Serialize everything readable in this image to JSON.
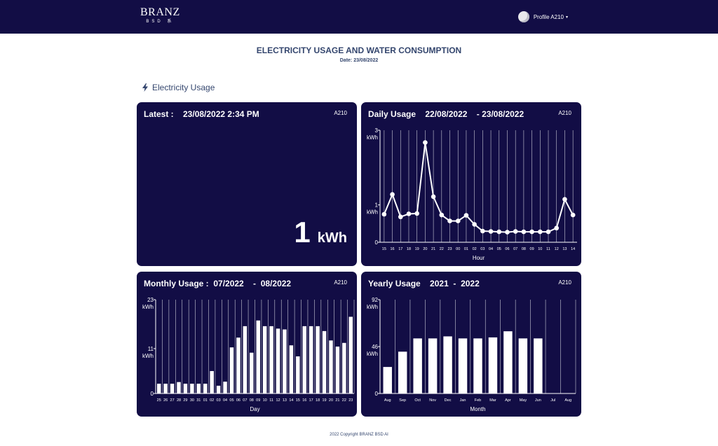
{
  "header": {
    "logo_main": "BRANZ",
    "logo_sub": "BSD 系",
    "profile_label": "Profile A210",
    "caret": "▾"
  },
  "page": {
    "title": "ELECTRICITY USAGE AND WATER CONSUMPTION",
    "date": "Date: 23/08/2022"
  },
  "section": {
    "label": "Electricity Usage",
    "icon": "bolt-icon"
  },
  "cards": {
    "latest": {
      "title": "Latest :    23/08/2022 2:34 PM",
      "id": "A210",
      "value": "1",
      "unit": "kWh"
    },
    "daily": {
      "title": "Daily Usage    22/08/2022    - 23/08/2022",
      "id": "A210"
    },
    "monthly": {
      "title": "Monthly Usage :  07/2022    -  08/2022",
      "id": "A210"
    },
    "yearly": {
      "title": "Yearly Usage    2021  -  2022",
      "id": "A210"
    }
  },
  "footer": {
    "text": "2022 Copyright BRANZ BSD AI"
  },
  "colors": {
    "brand": "#120d45",
    "heading": "#34466e"
  },
  "chart_data": [
    {
      "id": "daily",
      "type": "line",
      "xlabel": "Hour",
      "ylabel": "kWh",
      "ylim": [
        0,
        3
      ],
      "yticks": [
        3,
        1,
        0
      ],
      "ytick_units": [
        "kWh",
        "kWh",
        ""
      ],
      "categories": [
        "15",
        "16",
        "17",
        "18",
        "19",
        "20",
        "21",
        "22",
        "23",
        "00",
        "01",
        "02",
        "03",
        "04",
        "05",
        "06",
        "07",
        "08",
        "09",
        "10",
        "11",
        "12",
        "13",
        "14"
      ],
      "values": [
        0.75,
        1.28,
        0.68,
        0.76,
        0.77,
        2.67,
        1.22,
        0.73,
        0.57,
        0.57,
        0.72,
        0.48,
        0.3,
        0.29,
        0.28,
        0.27,
        0.29,
        0.28,
        0.28,
        0.28,
        0.28,
        0.38,
        1.15,
        0.73
      ]
    },
    {
      "id": "monthly",
      "type": "bar",
      "xlabel": "Day",
      "ylabel": "kWh",
      "ylim": [
        0,
        23
      ],
      "yticks": [
        23,
        11,
        0
      ],
      "ytick_units": [
        "kWh",
        "kWh",
        ""
      ],
      "categories": [
        "25",
        "26",
        "27",
        "28",
        "29",
        "30",
        "31",
        "01",
        "02",
        "03",
        "04",
        "05",
        "06",
        "07",
        "08",
        "09",
        "10",
        "11",
        "12",
        "13",
        "14",
        "15",
        "16",
        "17",
        "18",
        "19",
        "20",
        "21",
        "22",
        "23"
      ],
      "values": [
        2.4,
        2.4,
        2.4,
        2.8,
        2.4,
        2.4,
        2.4,
        2.4,
        5.5,
        1.9,
        2.9,
        11.3,
        13.7,
        16.5,
        10,
        17.9,
        16.5,
        16.5,
        15.9,
        15.7,
        11.8,
        9.1,
        16.5,
        16.5,
        16.5,
        15.3,
        13,
        11.5,
        12.4,
        18.8
      ]
    },
    {
      "id": "yearly",
      "type": "bar",
      "xlabel": "Month",
      "ylabel": "kWh",
      "ylim": [
        0,
        92
      ],
      "yticks": [
        92,
        46,
        0
      ],
      "ytick_units": [
        "kWh",
        "kWh",
        ""
      ],
      "categories": [
        "Aug",
        "Sep",
        "Oct",
        "Nov",
        "Dec",
        "Jan",
        "Feb",
        "Mar",
        "Apr",
        "May",
        "Jun",
        "Jul",
        "Aug"
      ],
      "values": [
        26,
        41,
        54,
        54,
        56,
        54,
        54,
        55,
        61,
        54,
        54,
        null,
        null
      ]
    }
  ]
}
